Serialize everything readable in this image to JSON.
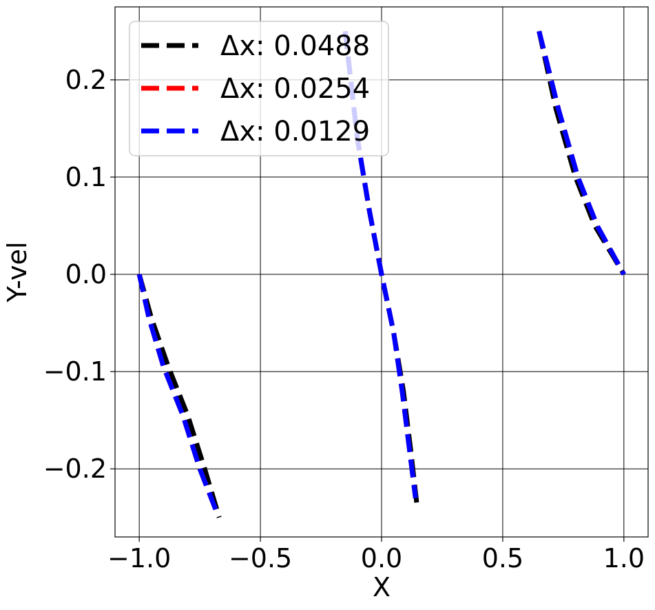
{
  "chart_data": {
    "type": "line",
    "title": "",
    "xlabel": "X",
    "ylabel": "Y-vel",
    "xlim": [
      -1.1,
      1.1
    ],
    "ylim": [
      -0.27,
      0.275
    ],
    "grid": true,
    "legend_placement": "upper-left",
    "xticks": [
      -1.0,
      -0.5,
      0.0,
      0.5,
      1.0
    ],
    "xtick_labels": [
      "−1.0",
      "−0.5",
      "0.0",
      "0.5",
      "1.0"
    ],
    "yticks": [
      -0.2,
      -0.1,
      0.0,
      0.1,
      0.2
    ],
    "ytick_labels": [
      "−0.2",
      "−0.1",
      "0.0",
      "0.1",
      "0.2"
    ],
    "series": [
      {
        "name": "Δx: 0.0488",
        "color": "#000000",
        "segments": [
          [
            [
              -1.0,
              0.0
            ],
            [
              -0.95,
              -0.045
            ],
            [
              -0.88,
              -0.095
            ],
            [
              -0.8,
              -0.145
            ],
            [
              -0.73,
              -0.2
            ],
            [
              -0.67,
              -0.25
            ]
          ],
          [
            [
              -0.15,
              0.25
            ],
            [
              -0.1,
              0.14
            ],
            [
              -0.05,
              0.065
            ],
            [
              0.0,
              0.0
            ],
            [
              0.05,
              -0.06
            ],
            [
              0.09,
              -0.12
            ],
            [
              0.12,
              -0.18
            ],
            [
              0.145,
              -0.235
            ]
          ],
          [
            [
              0.65,
              0.25
            ],
            [
              0.72,
              0.17
            ],
            [
              0.8,
              0.1
            ],
            [
              0.88,
              0.05
            ],
            [
              1.0,
              0.0
            ]
          ]
        ]
      },
      {
        "name": "Δx: 0.0254",
        "color": "#ff0000",
        "segments": [
          [
            [
              -1.0,
              0.0
            ],
            [
              -0.96,
              -0.045
            ],
            [
              -0.9,
              -0.095
            ],
            [
              -0.82,
              -0.145
            ],
            [
              -0.75,
              -0.2
            ],
            [
              -0.68,
              -0.245
            ]
          ],
          [
            [
              -0.15,
              0.25
            ],
            [
              -0.1,
              0.14
            ],
            [
              -0.05,
              0.065
            ],
            [
              0.0,
              0.0
            ],
            [
              0.05,
              -0.06
            ],
            [
              0.085,
              -0.12
            ],
            [
              0.115,
              -0.18
            ],
            [
              0.14,
              -0.23
            ]
          ],
          [
            [
              0.65,
              0.25
            ],
            [
              0.73,
              0.17
            ],
            [
              0.81,
              0.1
            ],
            [
              0.89,
              0.05
            ],
            [
              1.0,
              0.0
            ]
          ]
        ]
      },
      {
        "name": "Δx: 0.0129",
        "color": "#0000ff",
        "segments": [
          [
            [
              -1.0,
              0.0
            ],
            [
              -0.96,
              -0.045
            ],
            [
              -0.9,
              -0.095
            ],
            [
              -0.82,
              -0.145
            ],
            [
              -0.75,
              -0.2
            ],
            [
              -0.68,
              -0.245
            ]
          ],
          [
            [
              -0.15,
              0.25
            ],
            [
              -0.1,
              0.14
            ],
            [
              -0.05,
              0.065
            ],
            [
              0.0,
              0.0
            ],
            [
              0.05,
              -0.06
            ],
            [
              0.085,
              -0.12
            ],
            [
              0.115,
              -0.18
            ],
            [
              0.14,
              -0.23
            ]
          ],
          [
            [
              0.65,
              0.25
            ],
            [
              0.73,
              0.17
            ],
            [
              0.81,
              0.1
            ],
            [
              0.89,
              0.05
            ],
            [
              1.0,
              0.0
            ]
          ]
        ]
      }
    ]
  }
}
